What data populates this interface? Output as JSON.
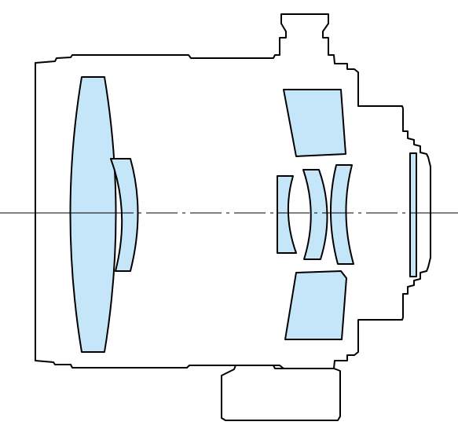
{
  "diagram": {
    "colors": {
      "background": "#ffffff",
      "outline": "#000000",
      "lens_glass": "#c5e5f8"
    },
    "elements": [
      {
        "name": "lens-housing"
      },
      {
        "name": "front-lens-element"
      },
      {
        "name": "front-meniscus-element"
      },
      {
        "name": "rear-group-upper-element"
      },
      {
        "name": "rear-group-lower-element"
      },
      {
        "name": "rear-group-meniscus-1"
      },
      {
        "name": "rear-group-meniscus-2"
      },
      {
        "name": "rear-group-meniscus-3"
      },
      {
        "name": "rear-filter-element"
      },
      {
        "name": "optical-axis"
      }
    ]
  }
}
